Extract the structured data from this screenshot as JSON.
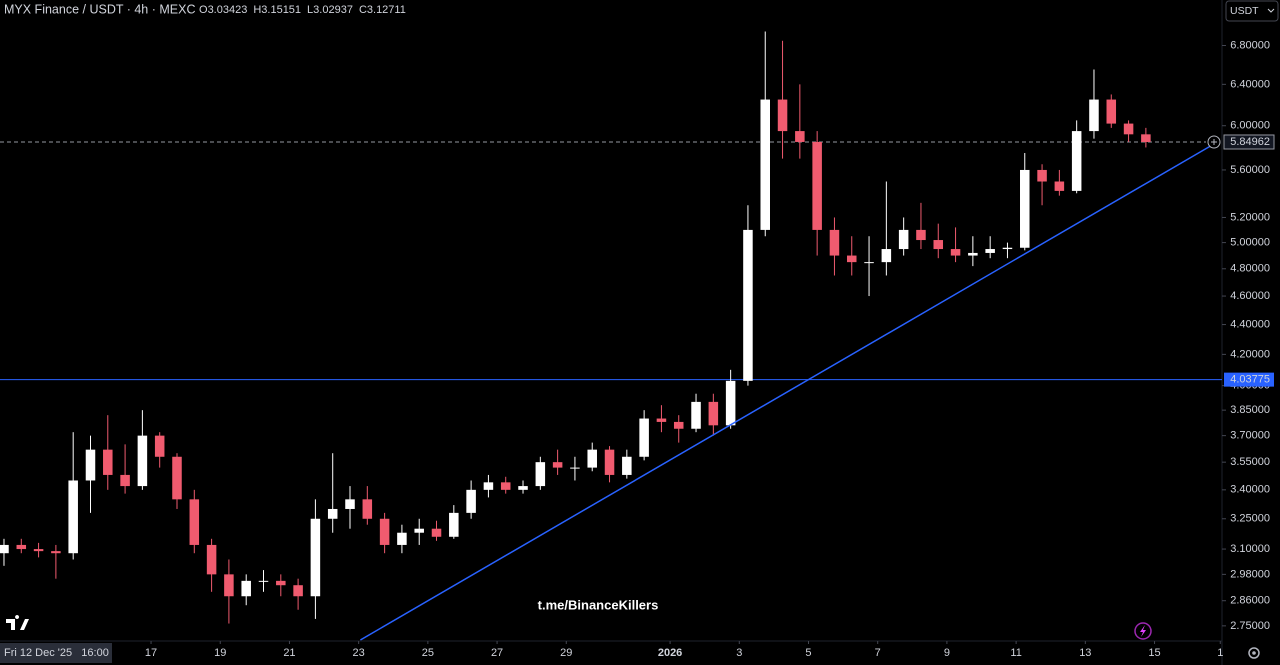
{
  "chart_data": {
    "type": "candlestick",
    "title": "MYX Finance / USDT · 4h · MEXC",
    "ohlc_legend": [
      {
        "label": "O",
        "value": 3.03423
      },
      {
        "label": "H",
        "value": 3.15151
      },
      {
        "label": "L",
        "value": 3.02937
      },
      {
        "label": "C",
        "value": 3.12711
      }
    ],
    "currency": "USDT",
    "time_label": "Fri 12 Dec '25   16:00",
    "watermark": "t.me/BinanceKillers",
    "up_color": "#ffffff",
    "down_color": "#f05b6f",
    "log_scale": true,
    "grid": false,
    "open": [
      3.08,
      3.12,
      3.1,
      3.09,
      3.08,
      3.45,
      3.62,
      3.48,
      3.42,
      3.7,
      3.58,
      3.35,
      3.12,
      2.98,
      2.88,
      2.95,
      2.95,
      2.93,
      2.88,
      3.25,
      3.3,
      3.35,
      3.25,
      3.12,
      3.18,
      3.2,
      3.16,
      3.28,
      3.4,
      3.44,
      3.4,
      3.42,
      3.55,
      3.52,
      3.52,
      3.62,
      3.48,
      3.58,
      3.8,
      3.78,
      3.74,
      3.9,
      3.76,
      4.03,
      5.1,
      6.25,
      5.95,
      5.85,
      5.1,
      4.9,
      4.85,
      4.85,
      4.95,
      5.1,
      5.02,
      4.95,
      4.9,
      4.92,
      4.95,
      4.96,
      5.6,
      5.5,
      5.42,
      5.95,
      6.25,
      6.02,
      5.92
    ],
    "high": [
      3.15,
      3.15,
      3.13,
      3.12,
      3.72,
      3.7,
      3.82,
      3.65,
      3.85,
      3.72,
      3.6,
      3.4,
      3.15,
      3.05,
      2.98,
      3.0,
      2.98,
      2.96,
      3.35,
      3.6,
      3.42,
      3.42,
      3.28,
      3.22,
      3.25,
      3.24,
      3.32,
      3.45,
      3.48,
      3.47,
      3.45,
      3.58,
      3.62,
      3.58,
      3.66,
      3.64,
      3.62,
      3.85,
      3.88,
      3.82,
      3.95,
      3.95,
      4.1,
      5.3,
      6.95,
      6.85,
      6.4,
      5.95,
      5.2,
      5.05,
      5.05,
      5.5,
      5.2,
      5.32,
      5.15,
      5.12,
      5.05,
      5.05,
      5.0,
      5.75,
      5.65,
      5.6,
      6.05,
      6.55,
      6.3,
      6.05,
      5.98
    ],
    "low": [
      3.02,
      3.08,
      3.06,
      2.96,
      3.05,
      3.28,
      3.4,
      3.38,
      3.4,
      3.52,
      3.3,
      3.08,
      2.9,
      2.76,
      2.84,
      2.9,
      2.88,
      2.82,
      2.78,
      3.18,
      3.2,
      3.22,
      3.08,
      3.08,
      3.12,
      3.14,
      3.15,
      3.25,
      3.36,
      3.38,
      3.38,
      3.4,
      3.48,
      3.45,
      3.5,
      3.44,
      3.46,
      3.56,
      3.72,
      3.66,
      3.72,
      3.7,
      3.74,
      4.0,
      5.05,
      5.7,
      5.7,
      4.9,
      4.75,
      4.75,
      4.6,
      4.75,
      4.9,
      4.95,
      4.88,
      4.85,
      4.82,
      4.88,
      4.88,
      4.94,
      5.3,
      5.38,
      5.4,
      5.88,
      5.98,
      5.85,
      5.8
    ],
    "close": [
      3.12,
      3.1,
      3.09,
      3.08,
      3.45,
      3.62,
      3.48,
      3.42,
      3.7,
      3.58,
      3.35,
      3.12,
      2.98,
      2.88,
      2.95,
      2.95,
      2.93,
      2.88,
      3.25,
      3.3,
      3.35,
      3.25,
      3.12,
      3.18,
      3.2,
      3.16,
      3.28,
      3.4,
      3.44,
      3.4,
      3.42,
      3.55,
      3.52,
      3.52,
      3.62,
      3.48,
      3.58,
      3.8,
      3.78,
      3.74,
      3.9,
      3.76,
      4.03,
      5.1,
      6.25,
      5.95,
      5.85,
      5.1,
      4.9,
      4.85,
      4.85,
      4.95,
      5.1,
      5.02,
      4.95,
      4.9,
      4.92,
      4.95,
      4.96,
      5.6,
      5.5,
      5.42,
      5.95,
      6.25,
      6.02,
      5.92,
      5.84962
    ],
    "xlim": [
      -0.23,
      70.4
    ],
    "xticks": [
      {
        "value": 8.5,
        "label": "17"
      },
      {
        "value": 12.5,
        "label": "19"
      },
      {
        "value": 16.5,
        "label": "21"
      },
      {
        "value": 20.5,
        "label": "23"
      },
      {
        "value": 24.5,
        "label": "25"
      },
      {
        "value": 28.5,
        "label": "27"
      },
      {
        "value": 32.5,
        "label": "29"
      },
      {
        "value": 38.5,
        "label": "2026"
      },
      {
        "value": 42.5,
        "label": "3"
      },
      {
        "value": 46.5,
        "label": "5"
      },
      {
        "value": 50.5,
        "label": "7"
      },
      {
        "value": 54.5,
        "label": "9"
      },
      {
        "value": 58.5,
        "label": "11"
      },
      {
        "value": 62.5,
        "label": "13"
      },
      {
        "value": 66.5,
        "label": "15"
      },
      {
        "value": 70.3,
        "label": "1"
      }
    ],
    "ylim": [
      2.69,
      7.3
    ],
    "yticks": [
      {
        "value": 2.75,
        "label": "2.75000"
      },
      {
        "value": 2.86,
        "label": "2.86000"
      },
      {
        "value": 2.98,
        "label": "2.98000"
      },
      {
        "value": 3.1,
        "label": "3.10000"
      },
      {
        "value": 3.25,
        "label": "3.25000"
      },
      {
        "value": 3.4,
        "label": "3.40000"
      },
      {
        "value": 3.55,
        "label": "3.55000"
      },
      {
        "value": 3.7,
        "label": "3.70000"
      },
      {
        "value": 3.85,
        "label": "3.85000"
      },
      {
        "value": 4.0,
        "label": "4.00000"
      },
      {
        "value": 4.2,
        "label": "4.20000"
      },
      {
        "value": 4.4,
        "label": "4.40000"
      },
      {
        "value": 4.6,
        "label": "4.60000"
      },
      {
        "value": 4.8,
        "label": "4.80000"
      },
      {
        "value": 5.0,
        "label": "5.00000"
      },
      {
        "value": 5.2,
        "label": "5.20000"
      },
      {
        "value": 5.6,
        "label": "5.60000"
      },
      {
        "value": 6.0,
        "label": "6.00000"
      },
      {
        "value": 6.4,
        "label": "6.40000"
      },
      {
        "value": 6.8,
        "label": "6.80000"
      }
    ],
    "horizontal_line": {
      "value": 4.03775,
      "color": "#2962ff"
    },
    "last_price": {
      "value": 5.84962,
      "color": "#9598a1"
    },
    "trendline": {
      "x": [
        20.6,
        69.7
      ],
      "y": [
        2.69,
        5.81
      ],
      "color": "#2962ff"
    }
  }
}
